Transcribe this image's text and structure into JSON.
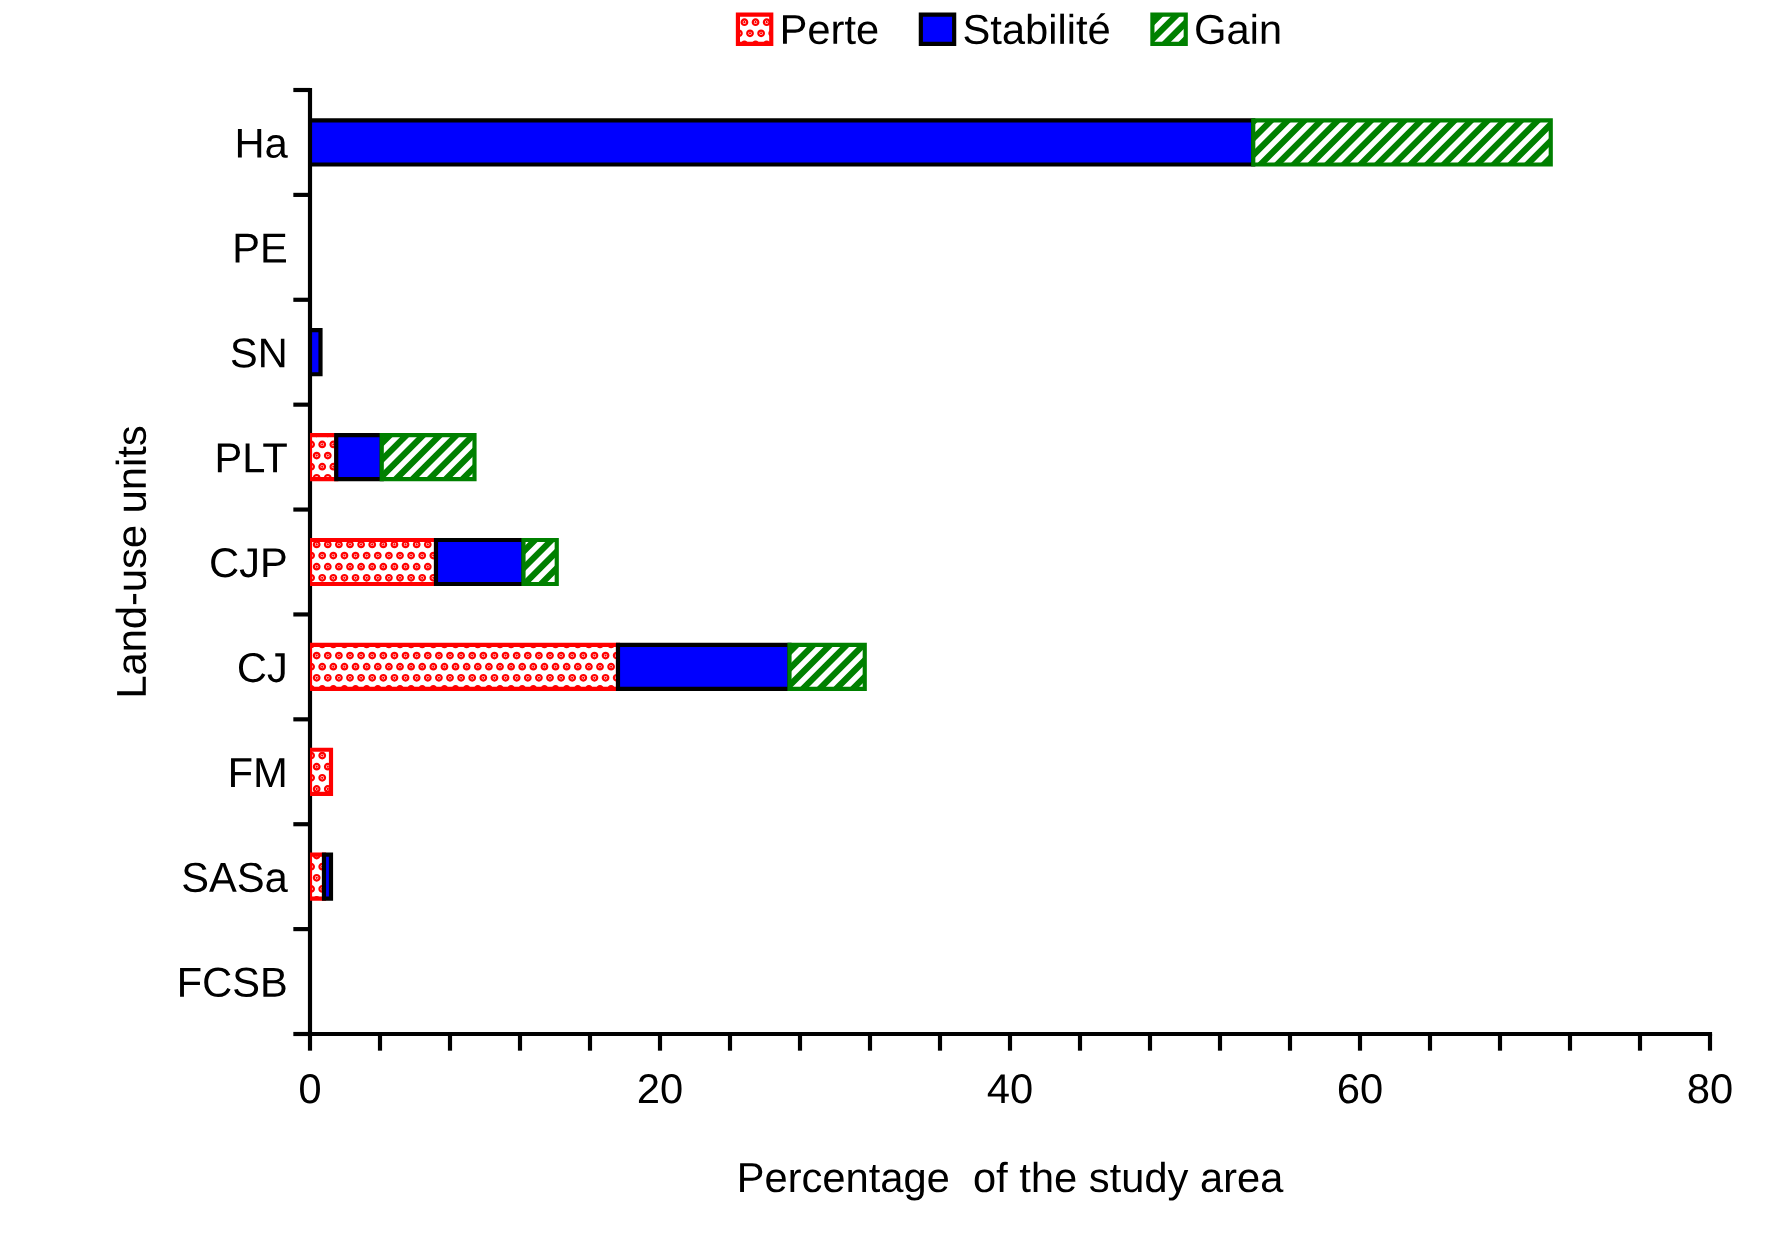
{
  "chart_data": {
    "type": "bar",
    "orientation": "horizontal",
    "stacked": true,
    "xlabel": "Percentage  of the study area",
    "ylabel": "Land-use units",
    "categories": [
      "Ha",
      "PE",
      "SN",
      "PLT",
      "CJP",
      "CJ",
      "FM",
      "SASa",
      "FCSB"
    ],
    "series": [
      {
        "name": "Perte",
        "color": "#ff0000",
        "values": [
          0,
          0,
          0,
          1.5,
          7.2,
          17.6,
          1.2,
          0.8,
          0
        ]
      },
      {
        "name": "Stabilité",
        "color": "#0000ff",
        "values": [
          53.9,
          null,
          0.6,
          2.6,
          5.0,
          9.8,
          0,
          0.4,
          null
        ]
      },
      {
        "name": "Gain",
        "color": "#008000",
        "values": [
          17.0,
          0,
          0,
          5.3,
          1.9,
          4.3,
          0,
          0,
          0
        ]
      }
    ],
    "xlim": [
      0,
      80
    ],
    "xticks": [
      0,
      {
        "value": 4,
        "label": null
      },
      {
        "value": 8,
        "label": null
      },
      {
        "value": 12,
        "label": null
      },
      {
        "value": 16,
        "label": null
      },
      20,
      {
        "value": 24,
        "label": null
      },
      {
        "value": 28,
        "label": null
      },
      {
        "value": 32,
        "label": null
      },
      {
        "value": 36,
        "label": null
      },
      40,
      {
        "value": 44,
        "label": null
      },
      {
        "value": 48,
        "label": null
      },
      {
        "value": 52,
        "label": null
      },
      {
        "value": 56,
        "label": null
      },
      60,
      {
        "value": 64,
        "label": null
      },
      {
        "value": 68,
        "label": null
      },
      {
        "value": 72,
        "label": null
      },
      {
        "value": 76,
        "label": null
      },
      80
    ],
    "legend": "top",
    "grid": false
  }
}
